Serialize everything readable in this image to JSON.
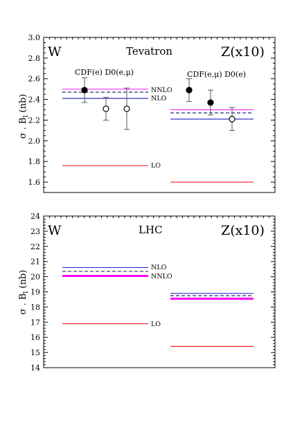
{
  "chart_data": [
    {
      "type": "line",
      "panel": "Tevatron",
      "process_labels": {
        "left": "W",
        "right": "Z(x10)"
      },
      "collider_label": "Tevatron",
      "ylabel": "σ . B",
      "ylabel_subscript": "l",
      "ylabel_unit": "(nb)",
      "ylim": [
        1.5,
        3.0
      ],
      "yticks": [
        "1.6",
        "1.8",
        "2.0",
        "2.2",
        "2.4",
        "2.6",
        "2.8",
        "3.0"
      ],
      "experiment_labels": {
        "left": "CDF(e)  D0(e,μ)",
        "right": "CDF(e,μ)  D0(e)"
      },
      "series": [
        {
          "name": "NNLO",
          "color": "#ff33ff",
          "style": "solid",
          "W": 2.5,
          "Z": 2.3
        },
        {
          "name": "NNLO dashed",
          "color": "#2b2b7a",
          "style": "dashed",
          "W": 2.47,
          "Z": 2.27
        },
        {
          "name": "NLO",
          "color": "#3333cc",
          "style": "solid",
          "W": 2.41,
          "Z": 2.21
        },
        {
          "name": "LO",
          "color": "#ff2222",
          "style": "solid",
          "W": 1.76,
          "Z": 1.6
        }
      ],
      "line_tags": [
        "NNLO",
        "NLO",
        "LO"
      ],
      "measurements": [
        {
          "label": "CDF(e)",
          "process": "W",
          "value": 2.49,
          "lo": 2.37,
          "hi": 2.61,
          "filled": true
        },
        {
          "label": "D0(e)",
          "process": "W",
          "value": 2.31,
          "lo": 2.2,
          "hi": 2.42,
          "filled": false
        },
        {
          "label": "D0(μ)",
          "process": "W",
          "value": 2.31,
          "lo": 2.11,
          "hi": 2.51,
          "filled": false
        },
        {
          "label": "CDF(e)",
          "process": "Z",
          "value": 2.49,
          "lo": 2.38,
          "hi": 2.6,
          "filled": true
        },
        {
          "label": "CDF(μ)",
          "process": "Z",
          "value": 2.37,
          "lo": 2.25,
          "hi": 2.49,
          "filled": true
        },
        {
          "label": "D0(e)",
          "process": "Z",
          "value": 2.21,
          "lo": 2.1,
          "hi": 2.32,
          "filled": false
        }
      ]
    },
    {
      "type": "line",
      "panel": "LHC",
      "process_labels": {
        "left": "W",
        "right": "Z(x10)"
      },
      "collider_label": "LHC",
      "ylabel": "σ . B",
      "ylabel_subscript": "l",
      "ylabel_unit": "(nb)",
      "ylim": [
        14,
        24
      ],
      "yticks": [
        "14",
        "15",
        "16",
        "17",
        "18",
        "19",
        "20",
        "21",
        "22",
        "23",
        "24"
      ],
      "series": [
        {
          "name": "NLO",
          "color": "#3333cc",
          "style": "solid",
          "W": 20.6,
          "Z": 18.9
        },
        {
          "name": "NNLO dashed",
          "color": "#2b2b7a",
          "style": "dashed",
          "W": 20.35,
          "Z": 18.75
        },
        {
          "name": "NNLO",
          "color": "#ff00ff",
          "style": "thick",
          "W": 20.05,
          "Z": 18.55
        },
        {
          "name": "LO",
          "color": "#ff2222",
          "style": "solid",
          "W": 16.9,
          "Z": 15.4
        }
      ],
      "line_tags": [
        "NLO",
        "NNLO",
        "LO"
      ]
    }
  ]
}
